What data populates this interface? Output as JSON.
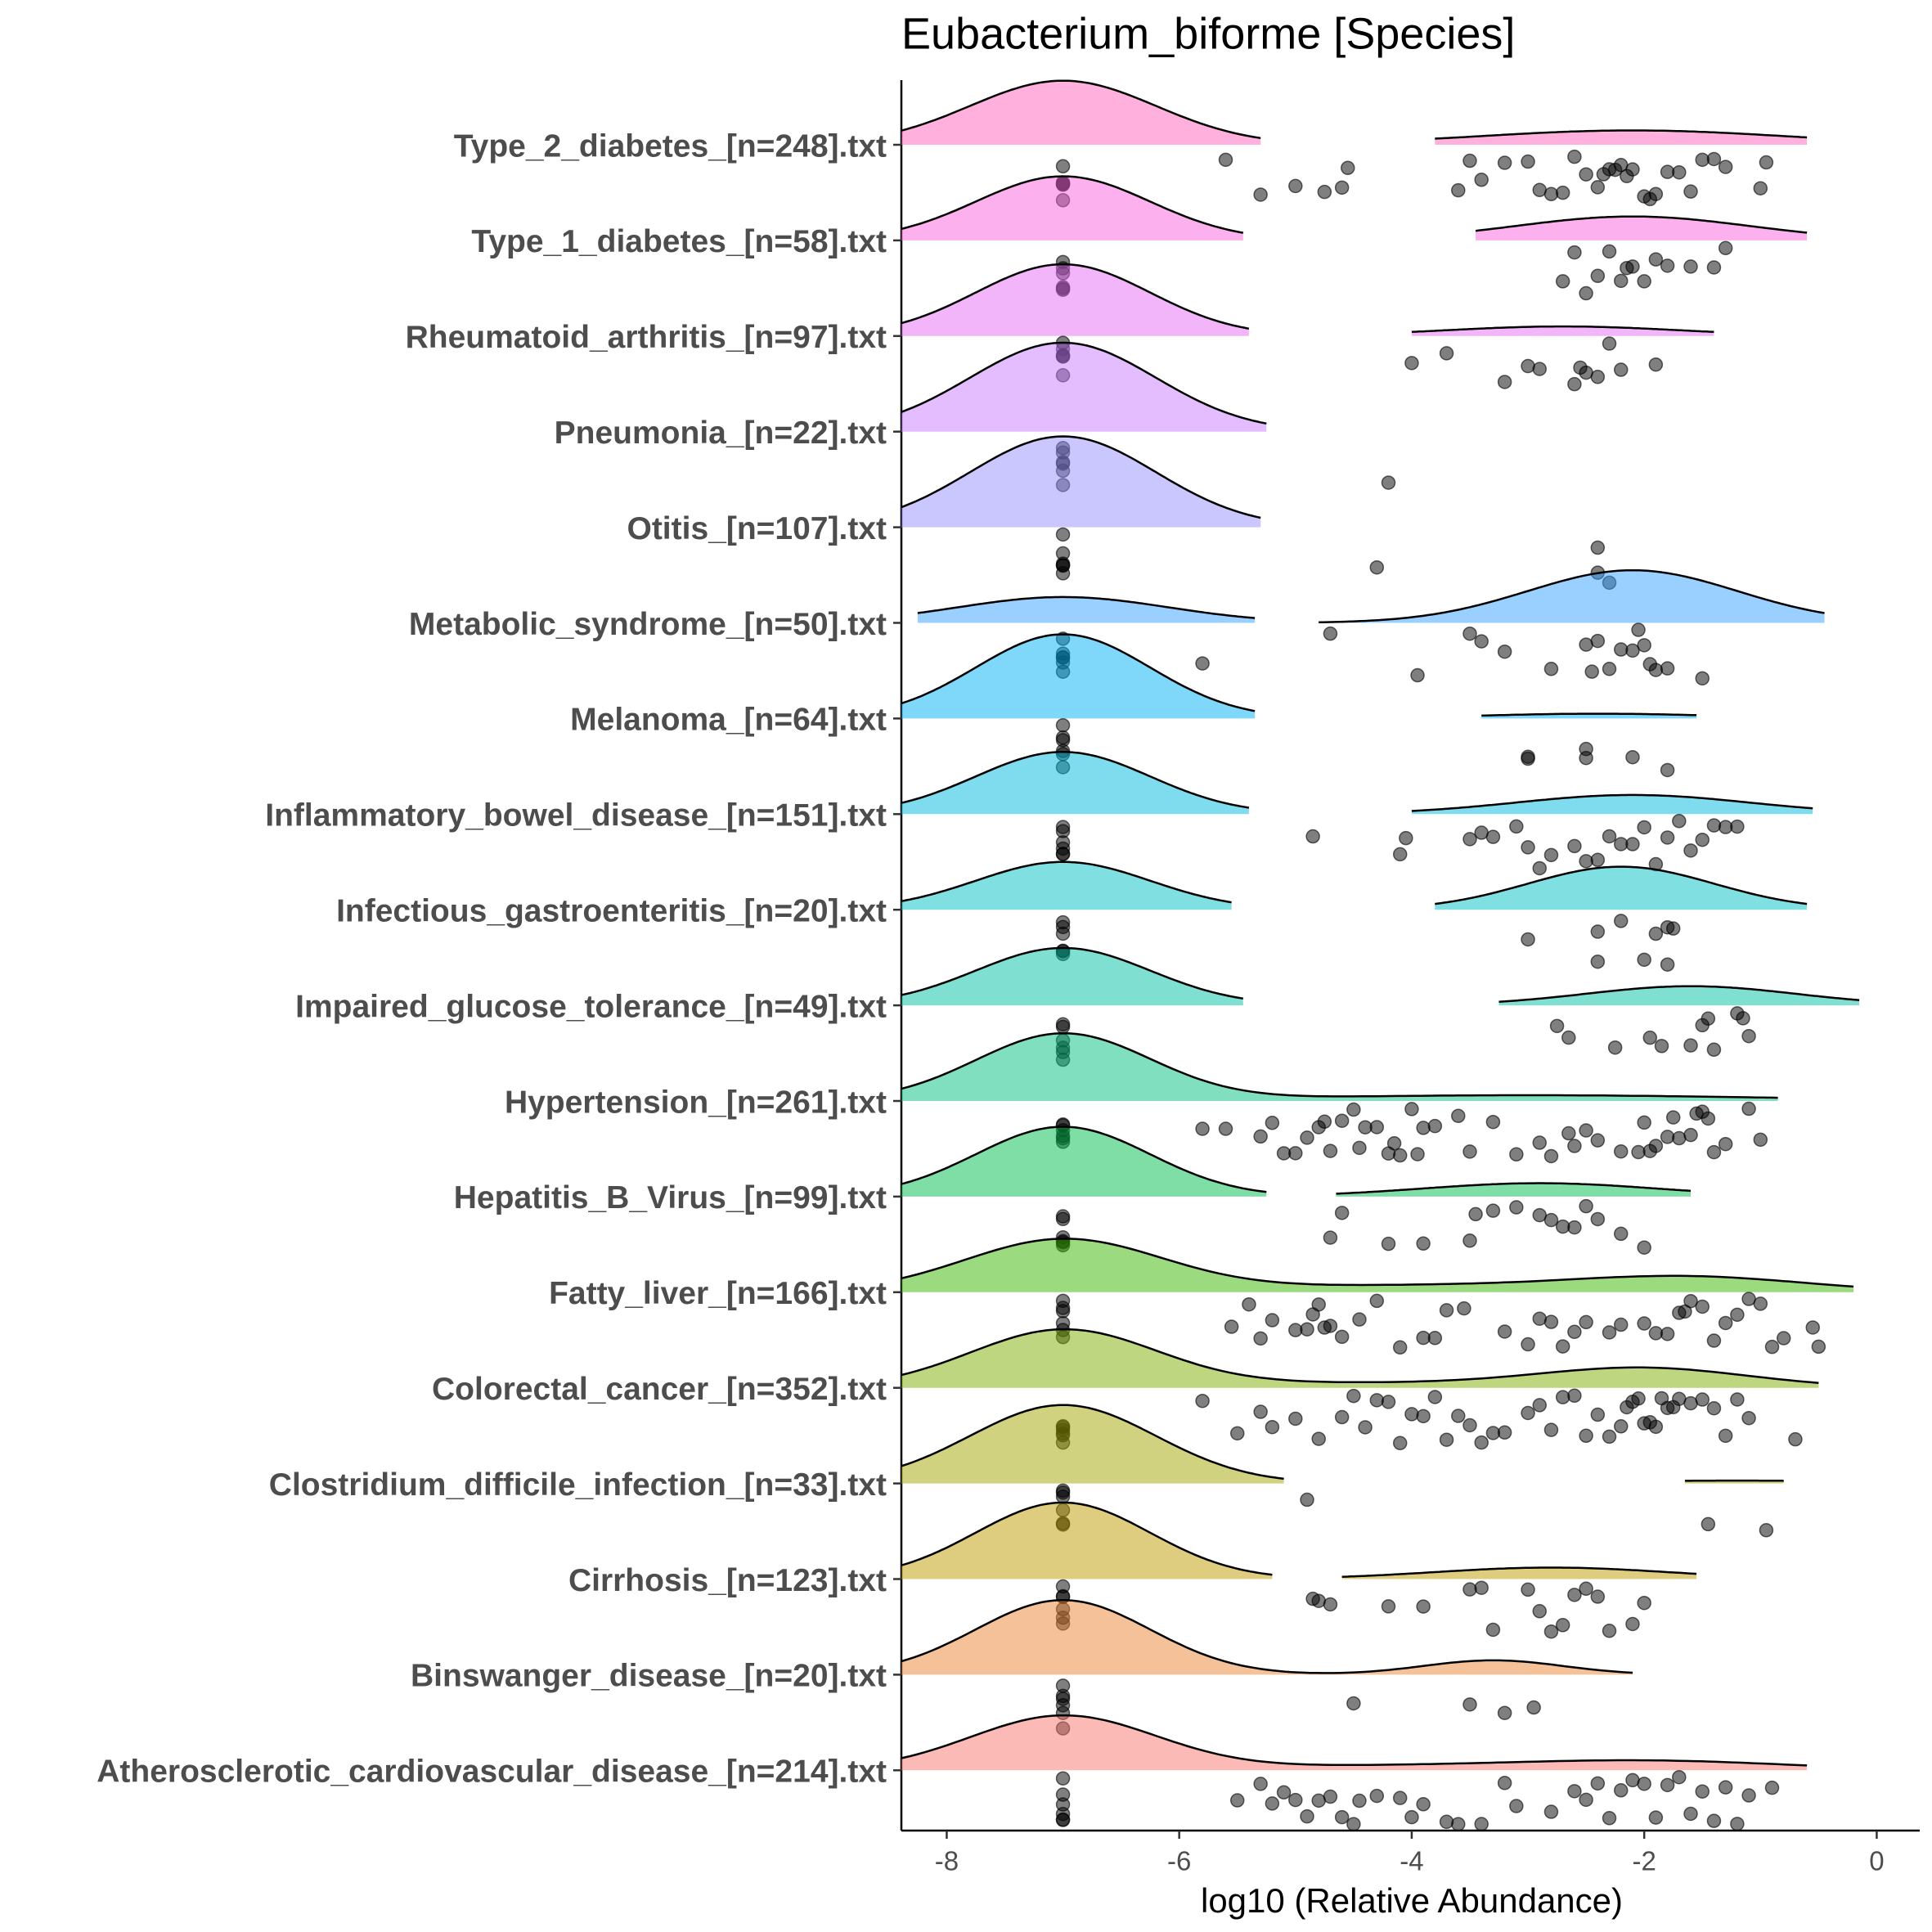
{
  "chart_data": {
    "type": "ridgeline",
    "title": "Eubacterium_biforme [Species]",
    "x_label": "log10 (Relative Abundance)",
    "xlim": [
      -8.39,
      0.37
    ],
    "xticks": [
      -8,
      -6,
      -4,
      -2,
      0
    ],
    "series": [
      {
        "name": "Type_2_diabetes_[n=248].txt",
        "color": "#FF62BC",
        "density": [
          {
            "from": -8.39,
            "to": -5.3,
            "peaks": [
              {
                "mean": -7,
                "sd": 0.8,
                "height": 0.67
              }
            ]
          },
          {
            "from": -3.8,
            "to": -0.6,
            "peaks": [
              {
                "mean": -2.1,
                "sd": 1.3,
                "height": 0.15
              }
            ]
          }
        ],
        "values": [
          -7,
          -7,
          -7,
          -7,
          -7,
          -7,
          -5.6,
          -5.3,
          -5.0,
          -4.75,
          -4.6,
          -4.55,
          -3.6,
          -3.5,
          -3.4,
          -3.2,
          -3.0,
          -2.9,
          -2.8,
          -2.7,
          -2.6,
          -2.5,
          -2.4,
          -2.3,
          -2.2,
          -2.1,
          -2.0,
          -1.9,
          -1.8,
          -1.7,
          -1.6,
          -1.5,
          -1.4,
          -1.3,
          -2.25,
          -2.15,
          -1.95,
          -2.35,
          -1.0,
          -0.95
        ]
      },
      {
        "name": "Type_1_diabetes_[n=58].txt",
        "color": "#FA62DB",
        "density": [
          {
            "from": -8.39,
            "to": -5.45,
            "peaks": [
              {
                "mean": -7,
                "sd": 0.75,
                "height": 0.67
              }
            ]
          },
          {
            "from": -3.45,
            "to": -0.6,
            "peaks": [
              {
                "mean": -2.1,
                "sd": 1.0,
                "height": 0.25
              }
            ]
          }
        ],
        "values": [
          -7,
          -7,
          -7,
          -7,
          -7,
          -7,
          -2.7,
          -2.6,
          -2.4,
          -2.3,
          -2.2,
          -2.1,
          -2.0,
          -1.9,
          -1.8,
          -1.6,
          -1.4,
          -2.5,
          -2.15,
          -1.3
        ]
      },
      {
        "name": "Rheumatoid_arthritis_[n=97].txt",
        "color": "#E76BF3",
        "density": [
          {
            "from": -8.39,
            "to": -5.4,
            "peaks": [
              {
                "mean": -7,
                "sd": 0.75,
                "height": 0.75
              }
            ]
          },
          {
            "from": -4.0,
            "to": -1.4,
            "peaks": [
              {
                "mean": -2.7,
                "sd": 1.0,
                "height": 0.1
              }
            ]
          }
        ],
        "values": [
          -7,
          -7,
          -7,
          -7,
          -7,
          -7,
          -4.0,
          -3.7,
          -3.2,
          -3.0,
          -2.9,
          -2.6,
          -2.5,
          -2.4,
          -2.3,
          -2.2,
          -1.9,
          -2.55
        ]
      },
      {
        "name": "Pneumonia_[n=22].txt",
        "color": "#C77CFF",
        "density": [
          {
            "from": -8.39,
            "to": -5.25,
            "peaks": [
              {
                "mean": -7,
                "sd": 0.8,
                "height": 0.93
              }
            ]
          }
        ],
        "values": [
          -7,
          -7,
          -7,
          -7,
          -7,
          -7,
          -4.2
        ]
      },
      {
        "name": "Otitis_[n=107].txt",
        "color": "#9590FF",
        "density": [
          {
            "from": -8.39,
            "to": -5.3,
            "peaks": [
              {
                "mean": -7,
                "sd": 0.8,
                "height": 0.95
              }
            ]
          }
        ],
        "values": [
          -7,
          -7,
          -7,
          -7,
          -7,
          -7,
          -4.3,
          -2.4,
          -2.4,
          -2.3
        ]
      },
      {
        "name": "Metabolic_syndrome_[n=50].txt",
        "color": "#35A2FF",
        "density": [
          {
            "from": -8.25,
            "to": -5.35,
            "peaks": [
              {
                "mean": -7,
                "sd": 0.9,
                "height": 0.27
              }
            ]
          },
          {
            "from": -4.8,
            "to": -0.45,
            "peaks": [
              {
                "mean": -2.1,
                "sd": 0.9,
                "height": 0.55
              }
            ]
          }
        ],
        "values": [
          -7,
          -7,
          -7,
          -7,
          -7,
          -7,
          -5.8,
          -4.7,
          -3.95,
          -3.5,
          -3.4,
          -3.2,
          -2.8,
          -2.5,
          -2.45,
          -2.4,
          -2.3,
          -2.2,
          -2.1,
          -2.05,
          -2.0,
          -1.95,
          -1.9,
          -1.8,
          -1.5
        ]
      },
      {
        "name": "Melanoma_[n=64].txt",
        "color": "#00B0F6",
        "density": [
          {
            "from": -8.39,
            "to": -5.35,
            "peaks": [
              {
                "mean": -7,
                "sd": 0.75,
                "height": 0.88
              }
            ]
          },
          {
            "from": -3.4,
            "to": -1.55,
            "peaks": [
              {
                "mean": -2.4,
                "sd": 1.0,
                "height": 0.05
              }
            ]
          }
        ],
        "values": [
          -7,
          -7,
          -7,
          -7,
          -7,
          -7,
          -3.0,
          -3.0,
          -2.5,
          -2.5,
          -2.1,
          -1.8
        ]
      },
      {
        "name": "Inflammatory_bowel_disease_[n=151].txt",
        "color": "#00BAE0",
        "density": [
          {
            "from": -8.39,
            "to": -5.4,
            "peaks": [
              {
                "mean": -7,
                "sd": 0.75,
                "height": 0.65
              }
            ]
          },
          {
            "from": -4.0,
            "to": -0.55,
            "peaks": [
              {
                "mean": -2.1,
                "sd": 1.0,
                "height": 0.2
              }
            ]
          }
        ],
        "values": [
          -7,
          -7,
          -7,
          -7,
          -7,
          -7,
          -4.85,
          -4.1,
          -4.05,
          -3.5,
          -3.4,
          -3.3,
          -3.1,
          -3.0,
          -2.9,
          -2.8,
          -2.6,
          -2.5,
          -2.4,
          -2.3,
          -2.2,
          -2.1,
          -2.0,
          -1.9,
          -1.8,
          -1.7,
          -1.6,
          -1.5,
          -1.4,
          -1.3,
          -1.2
        ]
      },
      {
        "name": "Infectious_gastroenteritis_[n=20].txt",
        "color": "#00BFC4",
        "density": [
          {
            "from": -8.39,
            "to": -5.55,
            "peaks": [
              {
                "mean": -7,
                "sd": 0.75,
                "height": 0.5
              }
            ]
          },
          {
            "from": -3.8,
            "to": -0.6,
            "peaks": [
              {
                "mean": -2.2,
                "sd": 0.8,
                "height": 0.45
              }
            ]
          }
        ],
        "values": [
          -7,
          -7,
          -7,
          -7,
          -7,
          -7,
          -3.0,
          -2.4,
          -2.4,
          -2.2,
          -2.0,
          -1.9,
          -1.8,
          -1.8,
          -1.75
        ]
      },
      {
        "name": "Impaired_glucose_tolerance_[n=49].txt",
        "color": "#00C1A3",
        "density": [
          {
            "from": -8.39,
            "to": -5.45,
            "peaks": [
              {
                "mean": -7,
                "sd": 0.75,
                "height": 0.6
              }
            ]
          },
          {
            "from": -3.25,
            "to": -0.15,
            "peaks": [
              {
                "mean": -1.6,
                "sd": 0.9,
                "height": 0.2
              }
            ]
          }
        ],
        "values": [
          -7,
          -7,
          -7,
          -7,
          -7,
          -7,
          -2.75,
          -2.65,
          -2.25,
          -1.95,
          -1.85,
          -1.6,
          -1.5,
          -1.45,
          -1.4,
          -1.2,
          -1.15,
          -1.1
        ]
      },
      {
        "name": "Hypertension_[n=261].txt",
        "color": "#00BF7D",
        "density": [
          {
            "from": -8.39,
            "to": -0.85,
            "peaks": [
              {
                "mean": -7,
                "sd": 0.75,
                "height": 0.7
              },
              {
                "mean": -3,
                "sd": 2,
                "height": 0.06
              }
            ]
          }
        ],
        "values": [
          -7,
          -7,
          -7,
          -7,
          -7,
          -7,
          -5.8,
          -5.6,
          -5.3,
          -5.2,
          -5.1,
          -5.0,
          -4.9,
          -4.8,
          -4.7,
          -4.6,
          -4.5,
          -4.4,
          -4.3,
          -4.2,
          -4.1,
          -4.0,
          -3.9,
          -3.8,
          -3.6,
          -3.5,
          -3.3,
          -3.1,
          -2.9,
          -2.8,
          -2.6,
          -2.5,
          -2.4,
          -2.2,
          -2.0,
          -1.9,
          -1.8,
          -1.7,
          -1.6,
          -1.5,
          -1.4,
          -1.3,
          -1.1,
          -1.0,
          -4.75,
          -4.45,
          -4.15,
          -3.95,
          -2.65,
          -1.95,
          -1.75,
          -1.55,
          -1.45,
          -2.05
        ]
      },
      {
        "name": "Hepatitis_B_Virus_[n=99].txt",
        "color": "#00BB4E",
        "density": [
          {
            "from": -8.39,
            "to": -5.25,
            "peaks": [
              {
                "mean": -7,
                "sd": 0.75,
                "height": 0.73
              }
            ]
          },
          {
            "from": -4.65,
            "to": -1.6,
            "peaks": [
              {
                "mean": -2.9,
                "sd": 1.0,
                "height": 0.14
              }
            ]
          }
        ],
        "values": [
          -7,
          -7,
          -7,
          -7,
          -7,
          -7,
          -4.7,
          -4.6,
          -4.2,
          -3.9,
          -3.5,
          -3.45,
          -3.3,
          -3.1,
          -2.9,
          -2.8,
          -2.7,
          -2.6,
          -2.5,
          -2.4,
          -2.2,
          -2.0
        ]
      },
      {
        "name": "Fatty_liver_[n=166].txt",
        "color": "#39B600",
        "density": [
          {
            "from": -8.39,
            "to": -0.2,
            "peaks": [
              {
                "mean": -7,
                "sd": 0.85,
                "height": 0.55
              },
              {
                "mean": -1.6,
                "sd": 1.0,
                "height": 0.15
              },
              {
                "mean": -4,
                "sd": 1.5,
                "height": 0.07
              }
            ]
          }
        ],
        "values": [
          -7,
          -7,
          -7,
          -7,
          -7,
          -7,
          -5.55,
          -5.4,
          -5.3,
          -5.2,
          -5.0,
          -4.9,
          -4.85,
          -4.8,
          -4.75,
          -4.7,
          -4.6,
          -4.45,
          -4.3,
          -4.1,
          -3.9,
          -3.8,
          -3.7,
          -3.55,
          -3.2,
          -3.0,
          -2.9,
          -2.8,
          -2.7,
          -2.6,
          -2.5,
          -2.3,
          -2.2,
          -2.0,
          -1.9,
          -1.8,
          -1.7,
          -1.65,
          -1.6,
          -1.5,
          -1.4,
          -1.3,
          -1.2,
          -1.1,
          -1.0,
          -0.9,
          -0.8,
          -0.55,
          -0.5
        ]
      },
      {
        "name": "Colorectal_cancer_[n=352].txt",
        "color": "#7CAE00",
        "density": [
          {
            "from": -8.39,
            "to": -0.5,
            "peaks": [
              {
                "mean": -7,
                "sd": 0.8,
                "height": 0.6
              },
              {
                "mean": -2,
                "sd": 0.9,
                "height": 0.2
              },
              {
                "mean": -4.5,
                "sd": 1.5,
                "height": 0.05
              }
            ]
          }
        ],
        "values": [
          -7,
          -7,
          -7,
          -7,
          -7,
          -7,
          -5.8,
          -5.5,
          -5.3,
          -5.2,
          -5.0,
          -4.8,
          -4.6,
          -4.5,
          -4.4,
          -4.3,
          -4.2,
          -4.1,
          -4.0,
          -3.9,
          -3.8,
          -3.7,
          -3.6,
          -3.5,
          -3.4,
          -3.3,
          -3.2,
          -3.0,
          -2.9,
          -2.8,
          -2.7,
          -2.6,
          -2.5,
          -2.4,
          -2.3,
          -2.2,
          -2.15,
          -2.1,
          -2.05,
          -2.0,
          -1.95,
          -1.9,
          -1.85,
          -1.8,
          -1.75,
          -1.7,
          -1.6,
          -1.5,
          -1.4,
          -1.3,
          -1.2,
          -1.1,
          -0.7
        ]
      },
      {
        "name": "Clostridium_difficile_infection_[n=33].txt",
        "color": "#A3A500",
        "density": [
          {
            "from": -8.39,
            "to": -5.1,
            "peaks": [
              {
                "mean": -7,
                "sd": 0.8,
                "height": 0.82
              }
            ]
          },
          {
            "from": -1.65,
            "to": -0.8,
            "peaks": [
              {
                "mean": -1.2,
                "sd": 1.0,
                "height": 0.03
              }
            ]
          }
        ],
        "values": [
          -7,
          -7,
          -7,
          -7,
          -7,
          -7,
          -4.9,
          -1.45,
          -0.95
        ]
      },
      {
        "name": "Cirrhosis_[n=123].txt",
        "color": "#C09B00",
        "density": [
          {
            "from": -8.39,
            "to": -5.2,
            "peaks": [
              {
                "mean": -7,
                "sd": 0.75,
                "height": 0.8
              }
            ]
          },
          {
            "from": -4.6,
            "to": -1.55,
            "peaks": [
              {
                "mean": -2.8,
                "sd": 1.0,
                "height": 0.12
              }
            ]
          }
        ],
        "values": [
          -7,
          -7,
          -7,
          -7,
          -7,
          -7,
          -4.85,
          -4.8,
          -4.7,
          -4.2,
          -3.9,
          -3.5,
          -3.4,
          -3.3,
          -3.0,
          -2.9,
          -2.8,
          -2.7,
          -2.6,
          -2.5,
          -2.4,
          -2.3,
          -2.1,
          -2.0
        ]
      },
      {
        "name": "Binswanger_disease_[n=20].txt",
        "color": "#EA8331",
        "density": [
          {
            "from": -8.39,
            "to": -2.1,
            "peaks": [
              {
                "mean": -7,
                "sd": 0.75,
                "height": 0.78
              },
              {
                "mean": -3.3,
                "sd": 0.6,
                "height": 0.15
              }
            ]
          }
        ],
        "values": [
          -7,
          -7,
          -7,
          -7,
          -7,
          -7,
          -4.5,
          -3.5,
          -3.2,
          -2.95
        ]
      },
      {
        "name": "Atherosclerotic_cardiovascular_disease_[n=214].txt",
        "color": "#F8766D",
        "density": [
          {
            "from": -8.39,
            "to": -0.6,
            "peaks": [
              {
                "mean": -7,
                "sd": 0.8,
                "height": 0.57
              },
              {
                "mean": -2,
                "sd": 1.2,
                "height": 0.1
              },
              {
                "mean": -4.5,
                "sd": 1.2,
                "height": 0.04
              }
            ]
          }
        ],
        "values": [
          -7,
          -7,
          -7,
          -7,
          -7,
          -7,
          -5.5,
          -5.3,
          -5.2,
          -5.1,
          -5.0,
          -4.9,
          -4.8,
          -4.7,
          -4.6,
          -4.5,
          -4.45,
          -4.3,
          -4.1,
          -4.0,
          -3.9,
          -3.7,
          -3.6,
          -3.4,
          -3.2,
          -3.1,
          -2.8,
          -2.6,
          -2.5,
          -2.4,
          -2.3,
          -2.2,
          -2.1,
          -2.0,
          -1.9,
          -1.8,
          -1.7,
          -1.6,
          -1.5,
          -1.4,
          -1.3,
          -1.2,
          -1.1,
          -0.9
        ]
      }
    ]
  }
}
